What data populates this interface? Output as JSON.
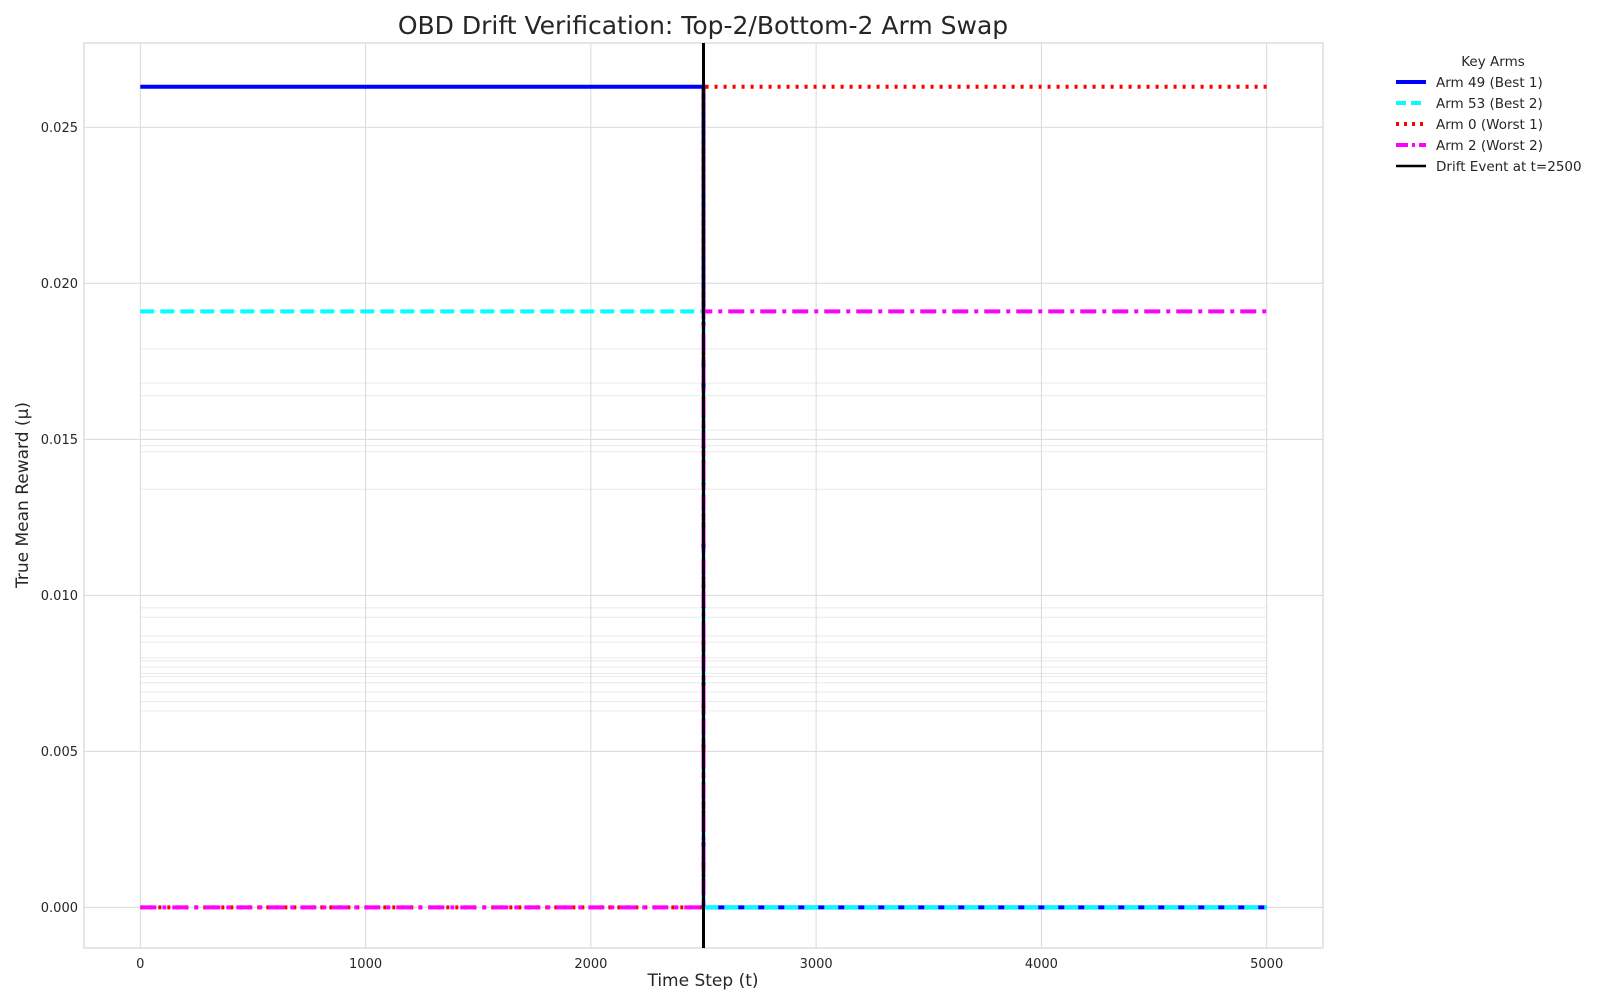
{
  "chart_data": {
    "type": "line",
    "title": "OBD Drift Verification: Top-2/Bottom-2 Arm Swap",
    "xlabel": "Time Step (t)",
    "ylabel": "True Mean Reward (μ)",
    "xlim": [
      -250,
      5250
    ],
    "ylim": [
      -0.0013,
      0.0277
    ],
    "xticks": [
      0,
      1000,
      2000,
      3000,
      4000,
      5000
    ],
    "xtick_labels": [
      "0",
      "1000",
      "2000",
      "3000",
      "4000",
      "5000"
    ],
    "yticks": [
      0.0,
      0.005,
      0.01,
      0.015,
      0.02,
      0.025
    ],
    "ytick_labels": [
      "0.000",
      "0.005",
      "0.010",
      "0.015",
      "0.020",
      "0.025"
    ],
    "grid": true,
    "legend_title": "Key Arms",
    "legend_position": "outside-top-right",
    "drift": {
      "t": 2500,
      "name": "Drift Event at t=2500",
      "color": "#000000"
    },
    "series": [
      {
        "name": "Arm 49 (Best 1)",
        "color": "#0000ff",
        "style": "solid",
        "x": [
          0,
          2500,
          2500,
          5000
        ],
        "y": [
          0.0263,
          0.0263,
          0.0,
          0.0
        ]
      },
      {
        "name": "Arm 53 (Best 2)",
        "color": "#00ffff",
        "style": "dashed",
        "x": [
          0,
          2500,
          2500,
          5000
        ],
        "y": [
          0.0191,
          0.0191,
          0.0,
          0.0
        ]
      },
      {
        "name": "Arm 0 (Worst 1)",
        "color": "#ff0000",
        "style": "dotted",
        "x": [
          0,
          2500,
          2500,
          5000
        ],
        "y": [
          0.0,
          0.0,
          0.0263,
          0.0263
        ]
      },
      {
        "name": "Arm 2 (Worst 2)",
        "color": "#ff00ff",
        "style": "dashdot",
        "x": [
          0,
          2500,
          2500,
          5000
        ],
        "y": [
          0.0,
          0.0,
          0.0191,
          0.0191
        ]
      }
    ],
    "background_arms": {
      "color": "#d8d8d8",
      "x": [
        0,
        5000
      ],
      "levels": [
        0.0179,
        0.0168,
        0.0164,
        0.0153,
        0.0148,
        0.0146,
        0.0134,
        0.0096,
        0.0093,
        0.0087,
        0.0085,
        0.008,
        0.0079,
        0.0077,
        0.0075,
        0.0074,
        0.0072,
        0.0069,
        0.0066,
        0.0063
      ]
    }
  }
}
